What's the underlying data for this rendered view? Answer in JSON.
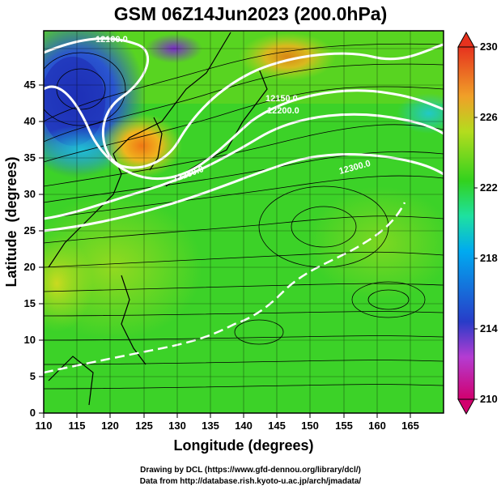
{
  "title": "GSM 06Z14Jun2023 (200.0hPa)",
  "chart_data": {
    "type": "heatmap",
    "title": "GSM 06Z14Jun2023 (200.0hPa)",
    "xlabel": "Longitude (degrees)",
    "ylabel": "Latitude  (degrees)",
    "xlim": [
      110,
      170
    ],
    "ylim": [
      0,
      50
    ],
    "xticks": [
      "110",
      "115",
      "120",
      "125",
      "130",
      "135",
      "140",
      "145",
      "150",
      "155",
      "160",
      "165"
    ],
    "yticks": [
      "0",
      "5",
      "10",
      "15",
      "20",
      "25",
      "30",
      "35",
      "40",
      "45"
    ],
    "grid": true,
    "colorbar": {
      "labels": [
        "230",
        "226",
        "222",
        "218",
        "214",
        "210"
      ],
      "range": [
        210,
        230
      ],
      "colors": [
        "#d1006e",
        "#b43cd2",
        "#283cc8",
        "#00aaf0",
        "#1ee1a0",
        "#32d21e",
        "#b4dc1e",
        "#f0a028",
        "#e6321e"
      ]
    },
    "contours": [
      {
        "label": "12100.0"
      },
      {
        "label": "12150.0"
      },
      {
        "label": "12200.0"
      },
      {
        "label": "12250.0"
      },
      {
        "label": "12300.0"
      }
    ],
    "features": [
      {
        "name": "warm core",
        "lon": 125,
        "lat": 37
      },
      {
        "name": "cold low",
        "lon": 114,
        "lat": 42
      },
      {
        "name": "warm area",
        "lon": 148,
        "lat": 46
      },
      {
        "name": "anticyclone",
        "lon": 150,
        "lat": 28
      },
      {
        "name": "vortex",
        "lon": 161,
        "lat": 17
      }
    ]
  },
  "credits": {
    "line1": "Drawing by DCL (https://www.gfd-dennou.org/library/dcl/)",
    "line2": "Data from http://database.rish.kyoto-u.ac.jp/arch/jmadata/"
  }
}
